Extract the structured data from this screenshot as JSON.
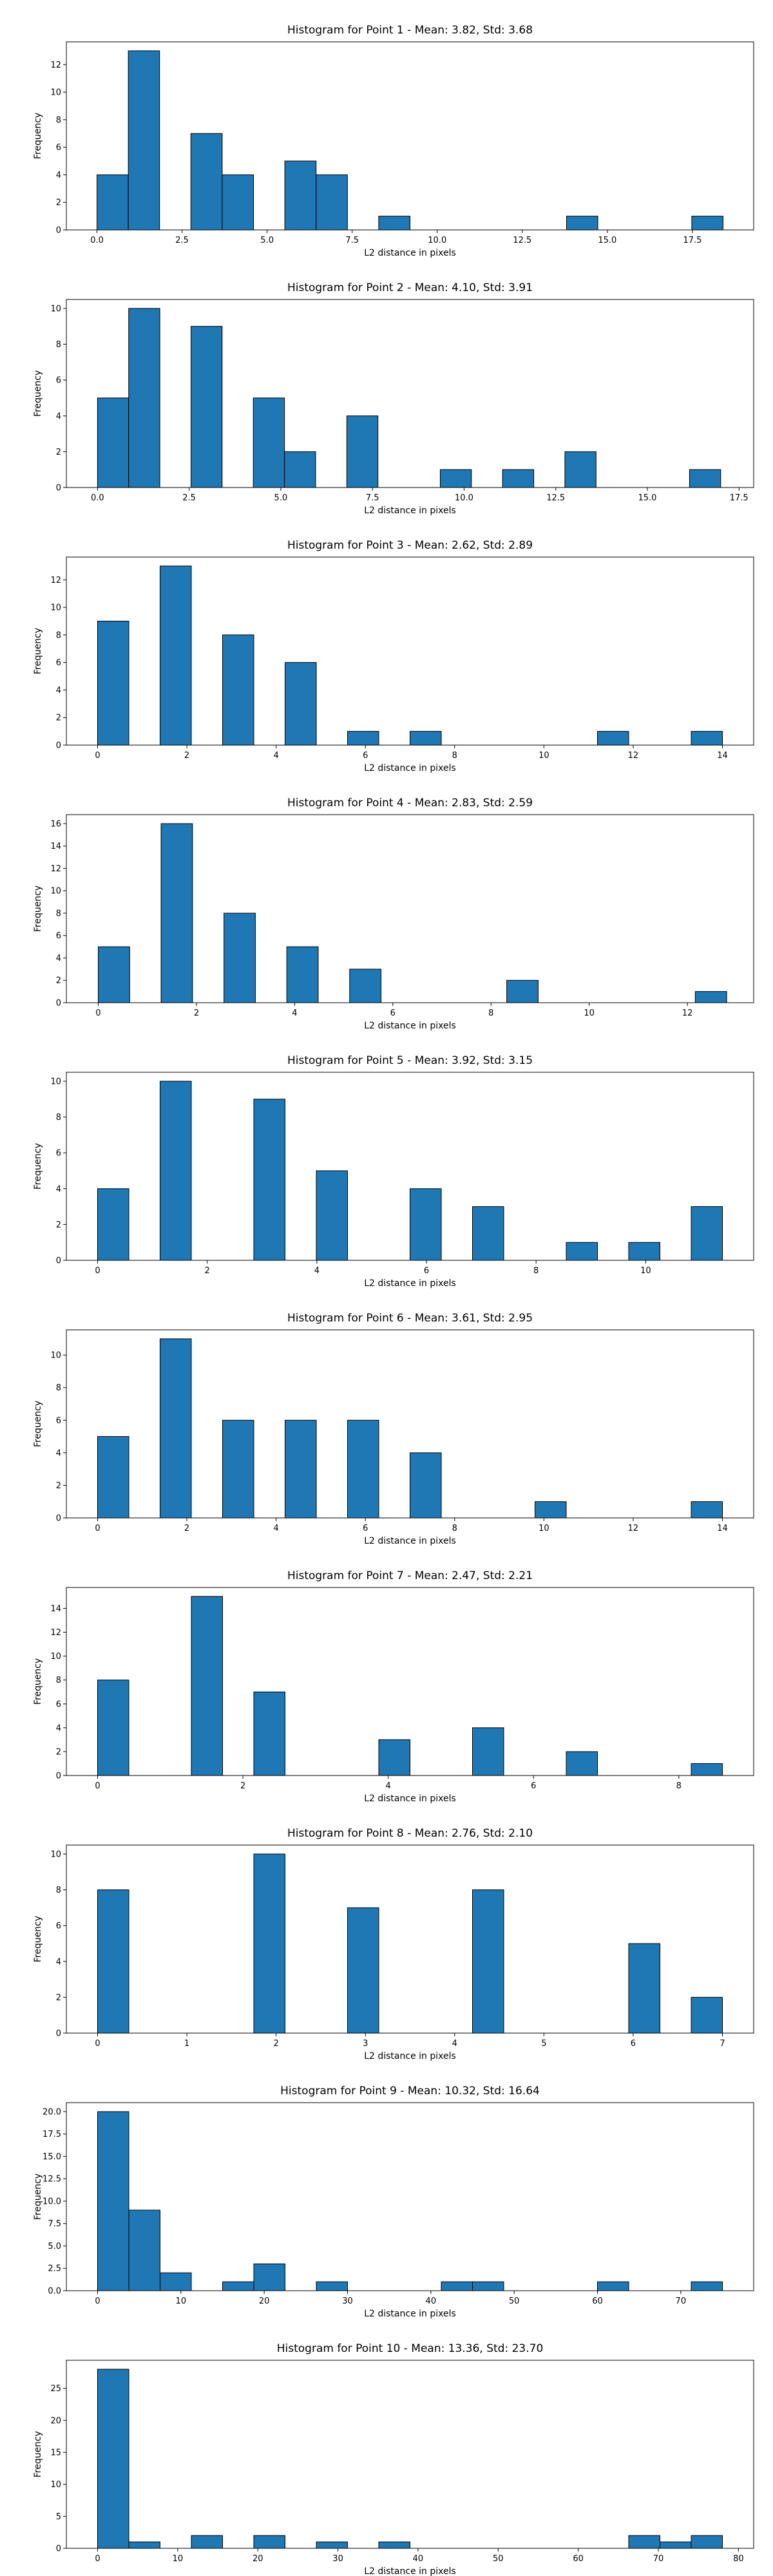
{
  "chart_data": [
    {
      "type": "bar",
      "title": "Histogram for Point 1 - Mean: 3.82, Std: 3.68",
      "xlabel": "L2 distance in pixels",
      "ylabel": "Frequency",
      "xlim": [
        -0.9,
        19.3
      ],
      "ylim": [
        0,
        13.65
      ],
      "xticks": [
        0,
        2.5,
        5,
        7.5,
        10,
        12.5,
        15,
        17.5
      ],
      "xtick_labels": [
        "0.0",
        "2.5",
        "5.0",
        "7.5",
        "10.0",
        "12.5",
        "15.0",
        "17.5"
      ],
      "yticks": [
        0,
        2,
        4,
        6,
        8,
        10,
        12
      ],
      "bin_start": 0,
      "bin_width": 0.92,
      "counts": [
        4,
        13,
        0,
        7,
        4,
        0,
        5,
        4,
        0,
        1,
        0,
        0,
        0,
        0,
        0,
        1,
        0,
        0,
        0,
        1
      ]
    },
    {
      "type": "bar",
      "title": "Histogram for Point 2 - Mean: 4.10, Std: 3.91",
      "xlabel": "L2 distance in pixels",
      "ylabel": "Frequency",
      "xlim": [
        -0.85,
        17.9
      ],
      "ylim": [
        0,
        10.5
      ],
      "xticks": [
        0,
        2.5,
        5,
        7.5,
        10,
        12.5,
        15,
        17.5
      ],
      "xtick_labels": [
        "0.0",
        "2.5",
        "5.0",
        "7.5",
        "10.0",
        "12.5",
        "15.0",
        "17.5"
      ],
      "yticks": [
        0,
        2,
        4,
        6,
        8,
        10
      ],
      "bin_start": 0,
      "bin_width": 0.85,
      "counts": [
        5,
        10,
        0,
        9,
        0,
        5,
        2,
        0,
        4,
        0,
        0,
        1,
        0,
        1,
        0,
        2,
        0,
        0,
        0,
        1
      ]
    },
    {
      "type": "bar",
      "title": "Histogram for Point 3 - Mean: 2.62, Std: 2.89",
      "xlabel": "L2 distance in pixels",
      "ylabel": "Frequency",
      "xlim": [
        -0.7,
        14.7
      ],
      "ylim": [
        0,
        13.65
      ],
      "xticks": [
        0,
        2,
        4,
        6,
        8,
        10,
        12,
        14
      ],
      "xtick_labels": [
        "0",
        "2",
        "4",
        "6",
        "8",
        "10",
        "12",
        "14"
      ],
      "yticks": [
        0,
        2,
        4,
        6,
        8,
        10,
        12
      ],
      "bin_start": 0,
      "bin_width": 0.7,
      "counts": [
        9,
        0,
        13,
        0,
        8,
        0,
        6,
        0,
        1,
        0,
        1,
        0,
        0,
        0,
        0,
        0,
        1,
        0,
        0,
        1
      ]
    },
    {
      "type": "bar",
      "title": "Histogram for Point 4 - Mean: 2.83, Std: 2.59",
      "xlabel": "L2 distance in pixels",
      "ylabel": "Frequency",
      "xlim": [
        -0.65,
        13.35
      ],
      "ylim": [
        0,
        16.8
      ],
      "xticks": [
        0,
        2,
        4,
        6,
        8,
        10,
        12
      ],
      "xtick_labels": [
        "0",
        "2",
        "4",
        "6",
        "8",
        "10",
        "12"
      ],
      "yticks": [
        0,
        2,
        4,
        6,
        8,
        10,
        12,
        14,
        16
      ],
      "bin_start": 0,
      "bin_width": 0.64,
      "counts": [
        5,
        0,
        16,
        0,
        8,
        0,
        5,
        0,
        3,
        0,
        0,
        0,
        0,
        2,
        0,
        0,
        0,
        0,
        0,
        1
      ]
    },
    {
      "type": "bar",
      "title": "Histogram for Point 5 - Mean: 3.92, Std: 3.15",
      "xlabel": "L2 distance in pixels",
      "ylabel": "Frequency",
      "xlim": [
        -0.57,
        11.97
      ],
      "ylim": [
        0,
        10.5
      ],
      "xticks": [
        0,
        2,
        4,
        6,
        8,
        10
      ],
      "xtick_labels": [
        "0",
        "2",
        "4",
        "6",
        "8",
        "10"
      ],
      "yticks": [
        0,
        2,
        4,
        6,
        8,
        10
      ],
      "bin_start": 0,
      "bin_width": 0.57,
      "counts": [
        4,
        0,
        10,
        0,
        0,
        9,
        0,
        5,
        0,
        0,
        4,
        0,
        3,
        0,
        0,
        1,
        0,
        1,
        0,
        3
      ]
    },
    {
      "type": "bar",
      "title": "Histogram for Point 6 - Mean: 3.61, Std: 2.95",
      "xlabel": "L2 distance in pixels",
      "ylabel": "Frequency",
      "xlim": [
        -0.7,
        14.7
      ],
      "ylim": [
        0,
        11.55
      ],
      "xticks": [
        0,
        2,
        4,
        6,
        8,
        10,
        12,
        14
      ],
      "xtick_labels": [
        "0",
        "2",
        "4",
        "6",
        "8",
        "10",
        "12",
        "14"
      ],
      "yticks": [
        0,
        2,
        4,
        6,
        8,
        10
      ],
      "bin_start": 0,
      "bin_width": 0.7,
      "counts": [
        5,
        0,
        11,
        0,
        6,
        0,
        6,
        0,
        6,
        0,
        4,
        0,
        0,
        0,
        1,
        0,
        0,
        0,
        0,
        1
      ]
    },
    {
      "type": "bar",
      "title": "Histogram for Point 7 - Mean: 2.47, Std: 2.21",
      "xlabel": "L2 distance in pixels",
      "ylabel": "Frequency",
      "xlim": [
        -0.43,
        9.03
      ],
      "ylim": [
        0,
        15.75
      ],
      "xticks": [
        0,
        2,
        4,
        6,
        8
      ],
      "xtick_labels": [
        "0",
        "2",
        "4",
        "6",
        "8"
      ],
      "yticks": [
        0,
        2,
        4,
        6,
        8,
        10,
        12,
        14
      ],
      "bin_start": 0,
      "bin_width": 0.43,
      "counts": [
        8,
        0,
        0,
        15,
        0,
        7,
        0,
        0,
        0,
        3,
        0,
        0,
        4,
        0,
        0,
        2,
        0,
        0,
        0,
        1
      ]
    },
    {
      "type": "bar",
      "title": "Histogram for Point 8 - Mean: 2.76, Std: 2.10",
      "xlabel": "L2 distance in pixels",
      "ylabel": "Frequency",
      "xlim": [
        -0.35,
        7.35
      ],
      "ylim": [
        0,
        10.5
      ],
      "xticks": [
        0,
        1,
        2,
        3,
        4,
        5,
        6,
        7
      ],
      "xtick_labels": [
        "0",
        "1",
        "2",
        "3",
        "4",
        "5",
        "6",
        "7"
      ],
      "yticks": [
        0,
        2,
        4,
        6,
        8,
        10
      ],
      "bin_start": 0,
      "bin_width": 0.35,
      "counts": [
        8,
        0,
        0,
        0,
        0,
        10,
        0,
        0,
        7,
        0,
        0,
        0,
        8,
        0,
        0,
        0,
        0,
        5,
        0,
        2
      ]
    },
    {
      "type": "bar",
      "title": "Histogram for Point 9 - Mean: 10.32, Std: 16.64",
      "xlabel": "L2 distance in pixels",
      "ylabel": "Frequency",
      "xlim": [
        -3.75,
        78.75
      ],
      "ylim": [
        0,
        21
      ],
      "xticks": [
        0,
        10,
        20,
        30,
        40,
        50,
        60,
        70
      ],
      "xtick_labels": [
        "0",
        "10",
        "20",
        "30",
        "40",
        "50",
        "60",
        "70"
      ],
      "yticks": [
        0,
        2.5,
        5,
        7.5,
        10,
        12.5,
        15,
        17.5,
        20
      ],
      "ytick_labels": [
        "0.0",
        "2.5",
        "5.0",
        "7.5",
        "10.0",
        "12.5",
        "15.0",
        "17.5",
        "20.0"
      ],
      "bin_start": 0,
      "bin_width": 3.75,
      "counts": [
        20,
        9,
        2,
        0,
        1,
        3,
        0,
        1,
        0,
        0,
        0,
        1,
        1,
        0,
        0,
        0,
        1,
        0,
        0,
        1
      ]
    },
    {
      "type": "bar",
      "title": "Histogram for Point 10 - Mean: 13.36, Std: 23.70",
      "xlabel": "L2 distance in pixels",
      "ylabel": "Frequency",
      "xlim": [
        -3.9,
        81.9
      ],
      "ylim": [
        0,
        29.4
      ],
      "xticks": [
        0,
        10,
        20,
        30,
        40,
        50,
        60,
        70,
        80
      ],
      "xtick_labels": [
        "0",
        "10",
        "20",
        "30",
        "40",
        "50",
        "60",
        "70",
        "80"
      ],
      "yticks": [
        0,
        5,
        10,
        15,
        20,
        25
      ],
      "bin_start": 0,
      "bin_width": 3.9,
      "counts": [
        28,
        1,
        0,
        2,
        0,
        2,
        0,
        1,
        0,
        1,
        0,
        0,
        0,
        0,
        0,
        0,
        0,
        2,
        1,
        2
      ]
    }
  ]
}
